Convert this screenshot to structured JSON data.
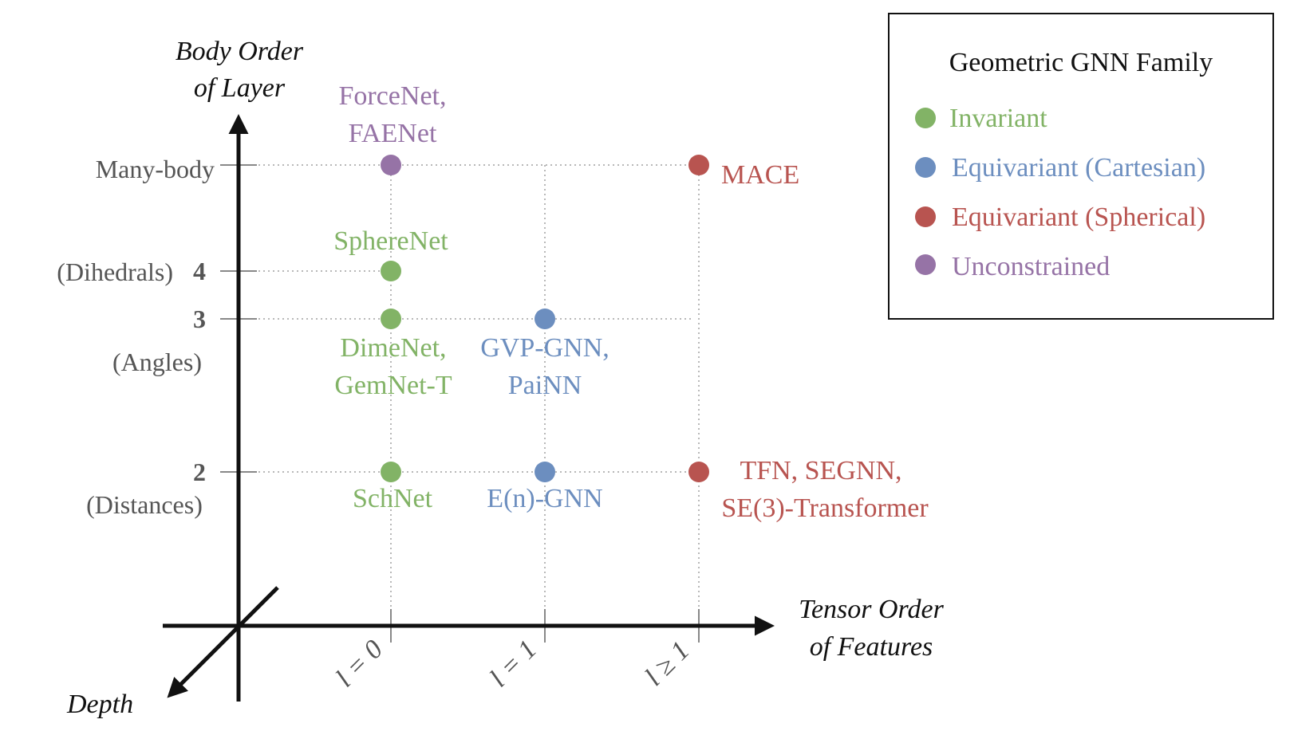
{
  "axes": {
    "y_title_line1": "Body Order",
    "y_title_line2": "of Layer",
    "x_title_line1": "Tensor Order",
    "x_title_line2": "of Features",
    "depth_label": "Depth"
  },
  "y_ticks": {
    "many_body": "Many-body",
    "four_num": "4",
    "four_desc": "(Dihedrals)",
    "three_num": "3",
    "three_desc": "(Angles)",
    "two_num": "2",
    "two_desc": "(Distances)"
  },
  "x_ticks": {
    "l0": "l = 0",
    "l1": "l = 1",
    "lge1": "l ≥ 1"
  },
  "colors": {
    "invariant": "#82b366",
    "cartesian": "#6c8ebf",
    "spherical": "#b85450",
    "unconstrained": "#9673a6"
  },
  "models": {
    "forcenet_1": "ForceNet,",
    "forcenet_2": "FAENet",
    "mace": "MACE",
    "spherenet": "SphereNet",
    "dimenet_1": "DimeNet,",
    "dimenet_2": "GemNet-T",
    "gvp_1": "GVP-GNN,",
    "gvp_2": "PaiNN",
    "schnet": "SchNet",
    "egnn": "E(n)-GNN",
    "tfn_1": "TFN, SEGNN,",
    "tfn_2": "SE(3)-Transformer"
  },
  "legend": {
    "title": "Geometric GNN Family",
    "invariant": "Invariant",
    "cartesian": "Equivariant (Cartesian)",
    "spherical": "Equivariant (Spherical)",
    "unconstrained": "Unconstrained"
  }
}
